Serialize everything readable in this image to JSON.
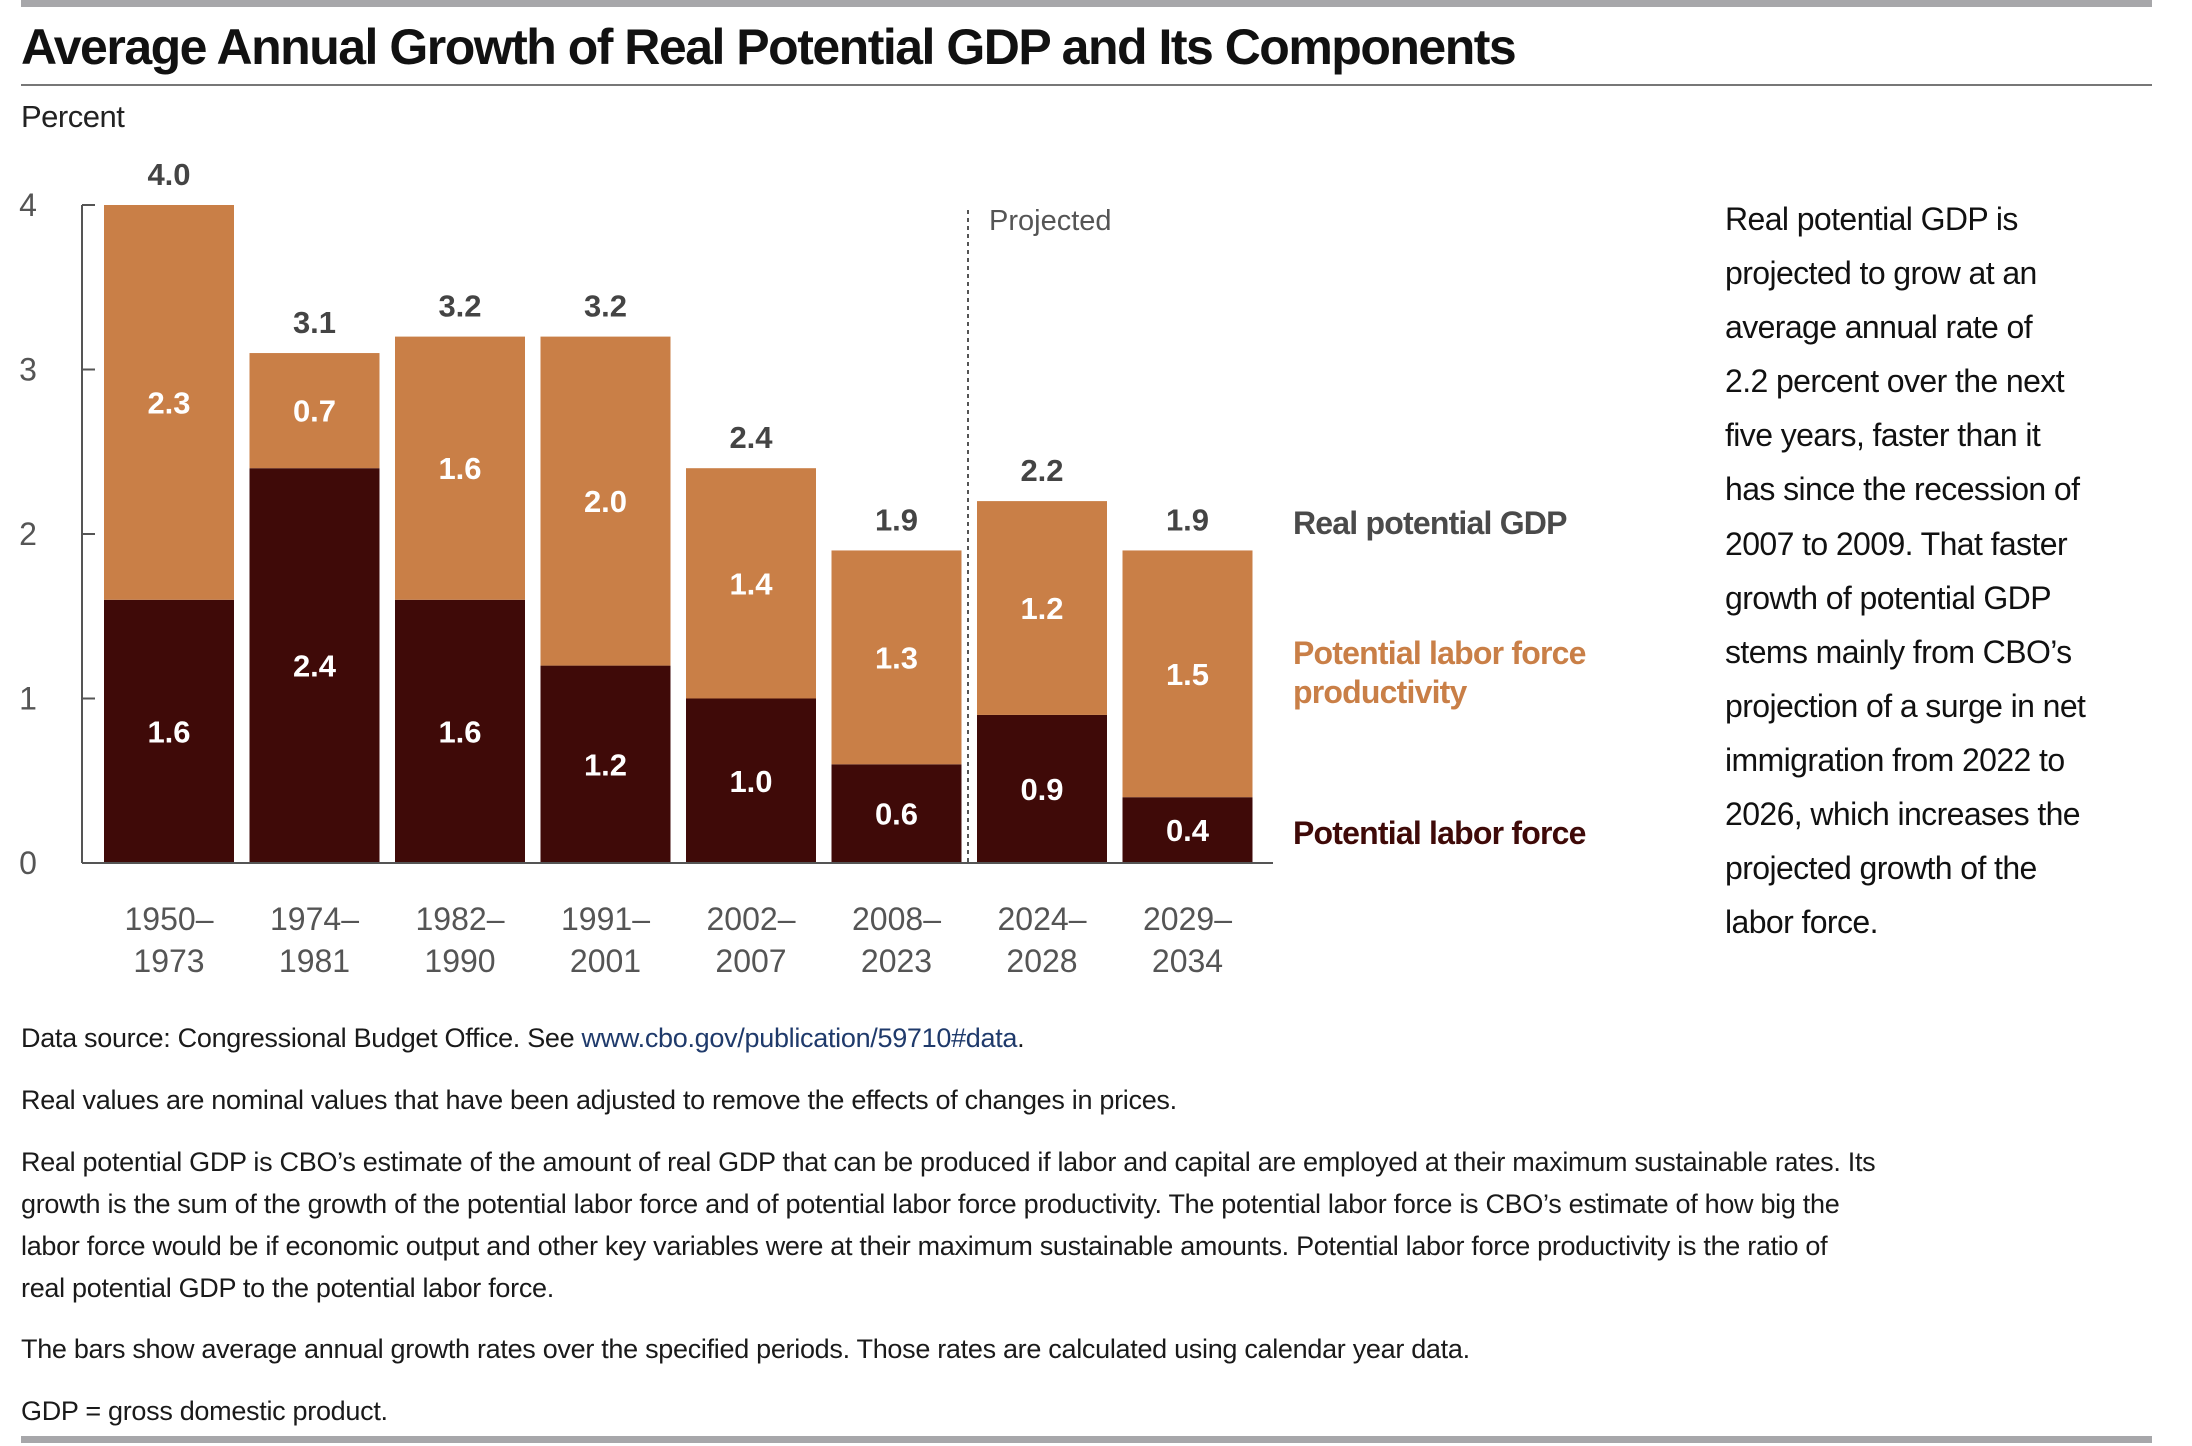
{
  "title": "Average Annual Growth of Real Potential GDP and Its Components",
  "chart_data": {
    "type": "bar",
    "stacked": true,
    "title": "Average Annual Growth of Real Potential GDP and Its Components",
    "ylabel": "Percent",
    "ylim": [
      0,
      4
    ],
    "yticks": [
      "0",
      "1",
      "2",
      "3",
      "4"
    ],
    "categories": [
      [
        "1950–",
        "1973"
      ],
      [
        "1974–",
        "1981"
      ],
      [
        "1982–",
        "1990"
      ],
      [
        "1991–",
        "2001"
      ],
      [
        "2002–",
        "2007"
      ],
      [
        "2008–",
        "2023"
      ],
      [
        "2024–",
        "2028"
      ],
      [
        "2029–",
        "2034"
      ]
    ],
    "series": [
      {
        "name": "Potential labor force",
        "color": "#3f0a08",
        "values": [
          1.6,
          2.4,
          1.6,
          1.2,
          1.0,
          0.6,
          0.9,
          0.4
        ]
      },
      {
        "name": "Potential labor force productivity",
        "color": "#c97f47",
        "values": [
          2.3,
          0.7,
          1.6,
          2.0,
          1.4,
          1.3,
          1.2,
          1.5
        ]
      }
    ],
    "totals": {
      "name": "Real potential GDP",
      "values": [
        4.0,
        3.1,
        3.2,
        3.2,
        2.4,
        1.9,
        2.2,
        1.9
      ]
    },
    "segment_labels": {
      "labor_force": [
        "1.6",
        "2.4",
        "1.6",
        "1.2",
        "1.0",
        "0.6",
        "0.9",
        "0.4"
      ],
      "productivity": [
        "2.3",
        "0.7",
        "1.6",
        "2.0",
        "1.4",
        "1.3",
        "1.2",
        "1.5"
      ],
      "totals": [
        "4.0",
        "3.1",
        "3.2",
        "3.2",
        "2.4",
        "1.9",
        "2.2",
        "1.9"
      ]
    },
    "annotation": "Projected",
    "projected_from_category": "2024–2028",
    "legend": {
      "placement": "right",
      "items": [
        {
          "lines": [
            "Real potential GDP"
          ],
          "color": "#4a4a4a"
        },
        {
          "lines": [
            "Potential labor force",
            "productivity"
          ],
          "color": "#c97f47"
        },
        {
          "lines": [
            "Potential labor force"
          ],
          "color": "#3f0a08"
        }
      ]
    },
    "grid": false
  },
  "side_text": [
    "Real potential GDP is",
    "projected to grow at an",
    "average annual rate of",
    "2.2 percent over the next",
    "five years, faster than it",
    "has since the recession of",
    "2007 to 2009. That faster",
    "growth of potential GDP",
    "stems mainly from CBO’s",
    "projection of a surge in net",
    "immigration from 2022 to",
    "2026, which increases the",
    "projected growth of the",
    "labor force."
  ],
  "notes": {
    "source_prefix": "Data source: Congressional Budget Office. See ",
    "source_link": "www.cbo.gov/publication/59710#data",
    "source_suffix": ".",
    "real_values": "Real values are nominal values that have been adjusted to remove the effects of changes in prices.",
    "definition_lines": [
      "Real potential GDP is CBO’s estimate of the amount of real GDP that can be produced if labor and capital are employed at their maximum sustainable rates. Its",
      "growth is the sum of the growth of the potential labor force and of potential labor force productivity. The potential labor force is CBO’s estimate of how big the",
      "labor force would be if economic output and other key variables were at their maximum sustainable amounts. Potential labor force productivity is the ratio of",
      "real potential GDP to the potential labor force."
    ],
    "bars_note": "The bars show average annual growth rates over the specified periods. Those rates are calculated using calendar year data.",
    "gdp_abbrev": "GDP = gross domestic product."
  }
}
